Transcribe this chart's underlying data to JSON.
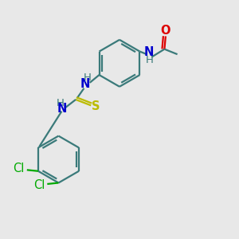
{
  "bg_color": "#e8e8e8",
  "bond_color": "#3a7a7a",
  "n_color": "#0000cc",
  "o_color": "#dd0000",
  "s_color": "#bbbb00",
  "cl_color": "#00aa00",
  "line_width": 1.6,
  "font_size": 10.5,
  "fig_w": 3.0,
  "fig_h": 3.0,
  "dpi": 100,
  "xlim": [
    0,
    10
  ],
  "ylim": [
    0,
    10
  ]
}
